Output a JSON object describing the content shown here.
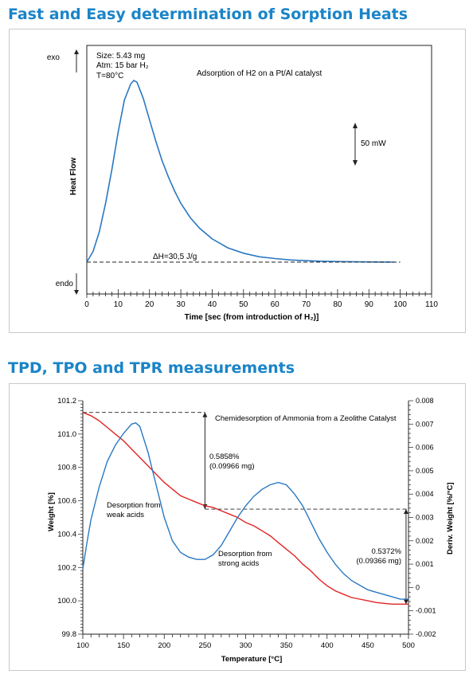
{
  "section1": {
    "title": "Fast and Easy determination of Sorption Heats"
  },
  "section2": {
    "title": "TPD, TPO and TPR measurements"
  },
  "colors": {
    "title": "#1a84c7",
    "blue": "#2a78c2",
    "red": "#e02424",
    "dashed": "#222222"
  },
  "chart_data": [
    {
      "type": "line",
      "title": "Adsorption of H2 on a Pt/Al catalyst",
      "xlabel": "Time [sec (from introduction of H₂)]",
      "ylabel": "Heat Flow",
      "xlim": [
        0,
        110
      ],
      "xticks": [
        "0",
        "10",
        "20",
        "30",
        "40",
        "50",
        "60",
        "70",
        "80",
        "90",
        "100",
        "110"
      ],
      "conditions": [
        "Size: 5.43 mg",
        "Atm: 15 bar H₂",
        "T=80°C"
      ],
      "exo_label": "exo",
      "endo_label": "endo",
      "scale_label": "50 mW",
      "annotation": "ΔH=30,5 J/g",
      "series": [
        {
          "x": [
            0,
            2,
            4,
            6,
            8,
            10,
            12,
            14,
            15,
            16,
            18,
            20,
            22,
            24,
            26,
            28,
            30,
            33,
            36,
            40,
            45,
            50,
            55,
            60,
            65,
            70,
            75,
            80,
            85,
            90,
            95,
            98
          ],
          "y": [
            0,
            6,
            17,
            33,
            52,
            73,
            91,
            100,
            102,
            101,
            92,
            80,
            68,
            57,
            48,
            40,
            33,
            25,
            19,
            13,
            8,
            5,
            3,
            2,
            1.2,
            0.8,
            0.5,
            0.3,
            0.2,
            0.1,
            0.05,
            0
          ]
        }
      ]
    },
    {
      "type": "line",
      "title": "Chemidesorption of Ammonia from a Zeolithe Catalyst",
      "xlabel": "Temperature [°C]",
      "ylabel": "Weight [%]",
      "y2label": "Deriv. Weight [%/°C]",
      "xlim": [
        100,
        500
      ],
      "ylim": [
        99.8,
        101.2
      ],
      "y2lim": [
        -0.002,
        0.008
      ],
      "xticks": [
        "100",
        "150",
        "200",
        "250",
        "300",
        "350",
        "400",
        "450",
        "500"
      ],
      "yticks": [
        "101.2",
        "101.0",
        "100.8",
        "100.6",
        "100.4",
        "100.2",
        "100.0",
        "99.8"
      ],
      "y2ticks": [
        "0.008",
        "0.007",
        "0.006",
        "0.005",
        "0.004",
        "0.003",
        "0.002",
        "0.001",
        "0",
        "-0.001",
        "-0.002"
      ],
      "annotations": {
        "weak": [
          "Desorption from",
          "weak acids"
        ],
        "strong": [
          "Desorption from",
          "strong acids"
        ],
        "step1": [
          "0.5858%",
          "(0.09966 mg)"
        ],
        "step2": [
          "0.5372%",
          "(0.09366 mg)"
        ]
      },
      "series": [
        {
          "name": "Weight",
          "axis": "left",
          "x": [
            100,
            110,
            120,
            130,
            140,
            150,
            160,
            170,
            180,
            190,
            200,
            210,
            220,
            230,
            240,
            250,
            260,
            270,
            280,
            290,
            300,
            310,
            320,
            330,
            340,
            350,
            360,
            370,
            380,
            390,
            400,
            410,
            420,
            430,
            440,
            450,
            460,
            470,
            480,
            490,
            500
          ],
          "y": [
            101.13,
            101.11,
            101.08,
            101.04,
            101.0,
            100.96,
            100.91,
            100.86,
            100.81,
            100.76,
            100.71,
            100.67,
            100.63,
            100.61,
            100.59,
            100.57,
            100.56,
            100.54,
            100.52,
            100.5,
            100.47,
            100.45,
            100.42,
            100.39,
            100.35,
            100.31,
            100.27,
            100.22,
            100.18,
            100.13,
            100.09,
            100.06,
            100.04,
            100.02,
            100.01,
            100.0,
            99.99,
            99.985,
            99.98,
            99.98,
            99.98
          ]
        },
        {
          "name": "Deriv. Weight",
          "axis": "right",
          "x": [
            100,
            105,
            110,
            120,
            130,
            140,
            150,
            160,
            165,
            170,
            180,
            190,
            200,
            210,
            220,
            230,
            240,
            250,
            260,
            270,
            280,
            290,
            300,
            310,
            320,
            330,
            340,
            350,
            360,
            370,
            380,
            390,
            400,
            410,
            420,
            430,
            440,
            450,
            460,
            470,
            480,
            490,
            500
          ],
          "y": [
            0.0008,
            0.0019,
            0.0029,
            0.0043,
            0.0054,
            0.0061,
            0.0066,
            0.007,
            0.00705,
            0.0069,
            0.0058,
            0.0044,
            0.003,
            0.002,
            0.0015,
            0.0013,
            0.0012,
            0.0012,
            0.0014,
            0.0018,
            0.0024,
            0.003,
            0.0035,
            0.0039,
            0.0042,
            0.0044,
            0.0045,
            0.0044,
            0.004,
            0.0035,
            0.0028,
            0.0021,
            0.0015,
            0.001,
            0.0006,
            0.0003,
            0.0001,
            -0.0001,
            -0.0002,
            -0.0003,
            -0.0004,
            -0.0005,
            -0.0005
          ]
        }
      ]
    }
  ]
}
